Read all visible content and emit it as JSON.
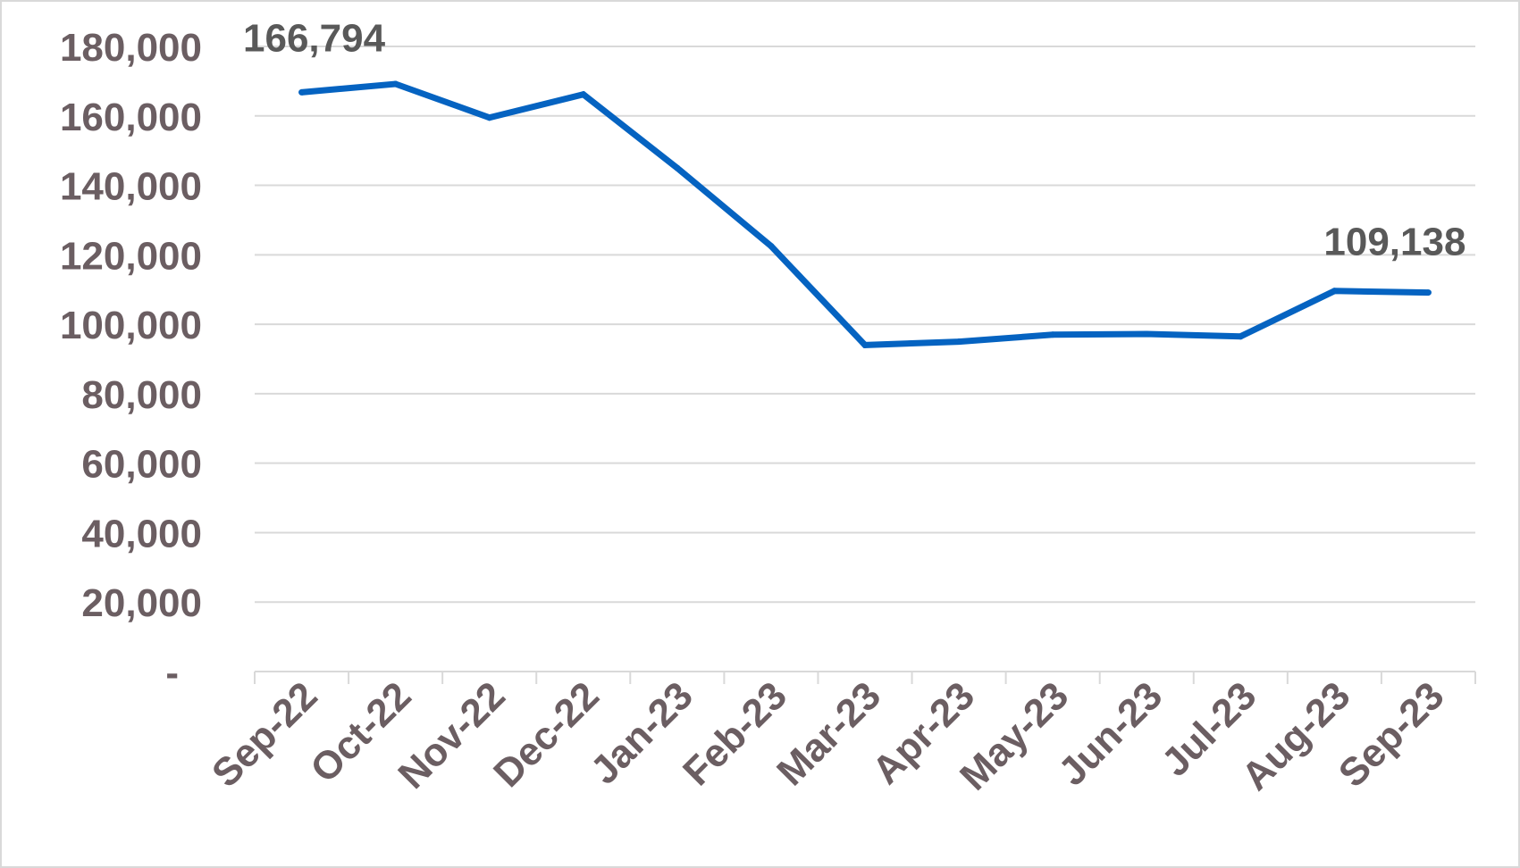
{
  "chart_data": {
    "type": "line",
    "title": "",
    "xlabel": "",
    "ylabel": "",
    "categories": [
      "Sep-22",
      "Oct-22",
      "Nov-22",
      "Dec-22",
      "Jan-23",
      "Feb-23",
      "Mar-23",
      "Apr-23",
      "May-23",
      "Jun-23",
      "Jul-23",
      "Aug-23",
      "Sep-23"
    ],
    "series": [
      {
        "values": [
          166794,
          169200,
          159500,
          166200,
          145000,
          122500,
          94000,
          95000,
          97000,
          97200,
          96500,
          109600,
          109138
        ],
        "color": "#0563c1"
      }
    ],
    "yticks": [
      {
        "value": 0,
        "label": "-"
      },
      {
        "value": 20000,
        "label": "20,000"
      },
      {
        "value": 40000,
        "label": "40,000"
      },
      {
        "value": 60000,
        "label": "60,000"
      },
      {
        "value": 80000,
        "label": "80,000"
      },
      {
        "value": 100000,
        "label": "100,000"
      },
      {
        "value": 120000,
        "label": "120,000"
      },
      {
        "value": 140000,
        "label": "140,000"
      },
      {
        "value": 160000,
        "label": "160,000"
      },
      {
        "value": 180000,
        "label": "180,000"
      }
    ],
    "ylim": [
      0,
      180000
    ],
    "grid": true,
    "legend": "none",
    "data_labels": [
      {
        "index": 0,
        "text": "166,794"
      },
      {
        "index": 12,
        "text": "109,138"
      }
    ],
    "colors": {
      "line": "#0563c1",
      "grid": "#d9d9d9",
      "axis": "#d9d9d9",
      "text": "#6b5e62",
      "data_label": "#595959"
    }
  }
}
